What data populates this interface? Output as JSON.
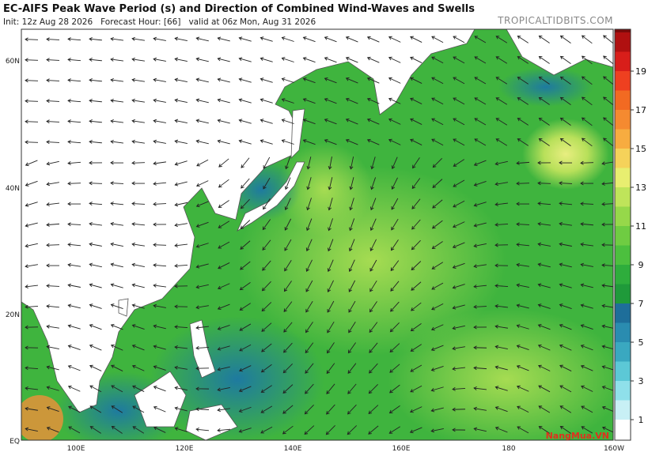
{
  "header": {
    "title": "EC-AIFS Peak Wave Period (s) and Direction of Combined Wind-Waves and Swells",
    "subtitle": "Init: 12z Aug 28 2026   Forecast Hour: [66]   valid at 06z Mon, Aug 31 2026",
    "source": "TROPICALTIDBITS.COM"
  },
  "map": {
    "lat_labels": [
      "60N",
      "40N",
      "20N",
      "EQ"
    ],
    "lon_labels": [
      "100E",
      "120E",
      "140E",
      "160E",
      "180",
      "160W"
    ]
  },
  "colorbar": {
    "ticks": [
      1,
      3,
      5,
      7,
      9,
      11,
      13,
      15,
      17,
      19
    ],
    "colors": [
      "#ffffff",
      "#c8f0f5",
      "#8fe0ea",
      "#5cc8d6",
      "#3aa8c0",
      "#2a8cb0",
      "#1e6e9a",
      "#1f9a3a",
      "#2ead3c",
      "#4cbf3e",
      "#6fcc42",
      "#96d84a",
      "#bfe45a",
      "#e8ee70",
      "#f5d25a",
      "#f7ac40",
      "#f58a30",
      "#f26a22",
      "#ee4020",
      "#d81e1a",
      "#b01010",
      "#7a0a0a"
    ]
  },
  "watermark": "NangMua.VN"
}
